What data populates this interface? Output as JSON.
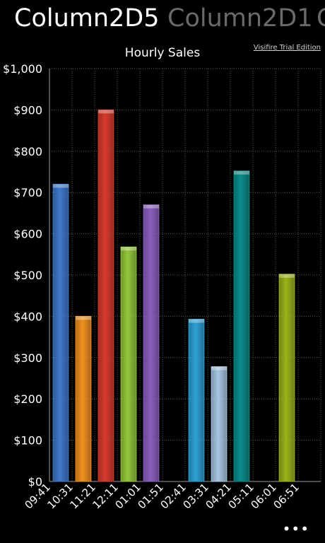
{
  "pivot": {
    "items": [
      "Column2D5",
      "Column2D1",
      "C"
    ]
  },
  "watermark": "Visifire Trial Edition",
  "app_bar": {
    "more_label": "•••"
  },
  "colors": {
    "background": "#000000",
    "grid": "#5a5a5a",
    "axis": "#9a9a9a",
    "bar_colors": [
      "#3f79cc",
      "#f0911e",
      "#d83b30",
      "#94c73a",
      "#8c5fbf",
      "#2ea1d6",
      "#2ea1d6",
      "#a8c7e3",
      "#0c8c8c",
      "#9ab41c"
    ]
  },
  "chart_data": {
    "type": "bar",
    "title": "Hourly Sales",
    "xlabel": "",
    "ylabel": "",
    "categories": [
      "09:41",
      "10:31",
      "11:21",
      "12:11",
      "01:01",
      "01:51",
      "02:41",
      "03:31",
      "04:21",
      "05:11",
      "06:01",
      "06:51"
    ],
    "values": [
      720,
      400,
      900,
      568,
      670,
      0,
      393,
      278,
      752,
      0,
      502,
      null
    ],
    "series_colors": [
      "#3f79cc",
      "#f0911e",
      "#d83b30",
      "#94c73a",
      "#8c5fbf",
      null,
      "#2ea1d6",
      "#a8c7e3",
      "#0c8c8c",
      null,
      "#9ab41c",
      null
    ],
    "ylim": [
      0,
      1000
    ],
    "yticks": [
      0,
      100,
      200,
      300,
      400,
      500,
      600,
      700,
      800,
      900,
      1000
    ],
    "ytick_labels": [
      "$0",
      "$100",
      "$200",
      "$300",
      "$400",
      "$500",
      "$600",
      "$700",
      "$800",
      "$900",
      "$1,000"
    ],
    "grid": true
  }
}
